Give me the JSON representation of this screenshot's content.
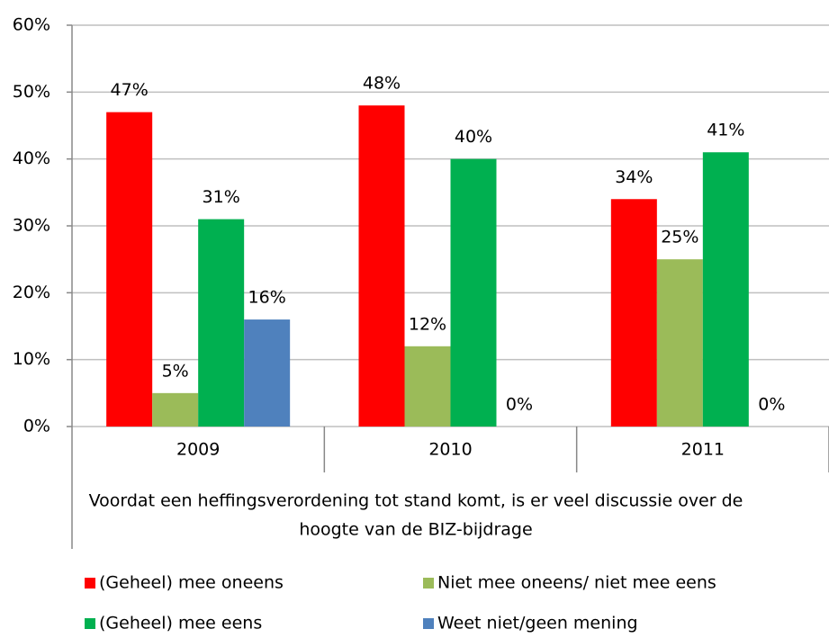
{
  "chart_data": {
    "type": "bar",
    "categories": [
      "2009",
      "2010",
      "2011"
    ],
    "xlabel": [
      "Voordat een heffingsverordening tot stand komt, is er veel discussie over de",
      "hoogte van de BIZ-bijdrage"
    ],
    "series": [
      {
        "name": "(Geheel) mee oneens",
        "color": "#ff0000",
        "values": [
          47,
          48,
          34
        ],
        "value_labels": [
          "47%",
          "48%",
          "34%"
        ]
      },
      {
        "name": "Niet mee oneens/ niet mee eens",
        "color": "#9bbb59",
        "values": [
          5,
          12,
          25
        ],
        "value_labels": [
          "5%",
          "12%",
          "25%"
        ]
      },
      {
        "name": "(Geheel) mee eens",
        "color": "#00b050",
        "values": [
          31,
          40,
          41
        ],
        "value_labels": [
          "31%",
          "40%",
          "41%"
        ]
      },
      {
        "name": "Weet niet/geen mening",
        "color": "#4f81bd",
        "values": [
          16,
          0,
          0
        ],
        "value_labels": [
          "16%",
          "0%",
          "0%"
        ]
      }
    ],
    "ylim": [
      0,
      60
    ],
    "yticks": [
      {
        "value": 0,
        "label": "0%"
      },
      {
        "value": 10,
        "label": "10%"
      },
      {
        "value": 20,
        "label": "20%"
      },
      {
        "value": 30,
        "label": "30%"
      },
      {
        "value": 40,
        "label": "40%"
      },
      {
        "value": 50,
        "label": "50%"
      },
      {
        "value": 60,
        "label": "60%"
      }
    ],
    "grid": true
  }
}
